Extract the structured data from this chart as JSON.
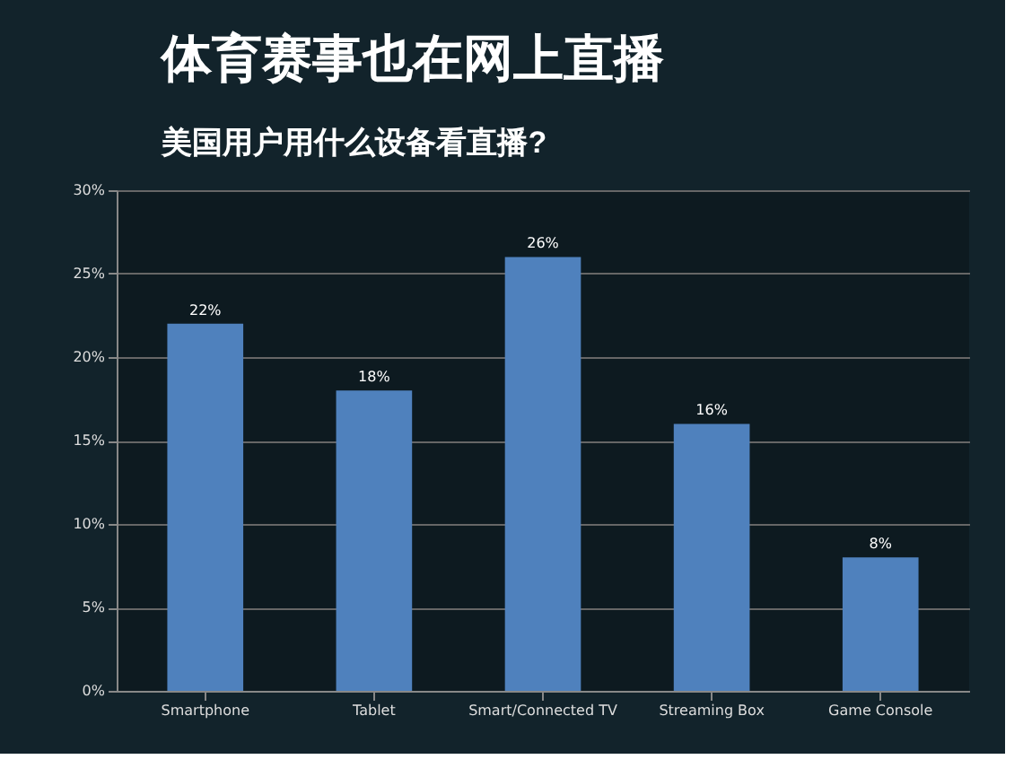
{
  "chart_data": {
    "type": "bar",
    "title": "体育赛事也在网上直播",
    "subtitle": "美国用户用什么设备看直播?",
    "categories": [
      "Smartphone",
      "Tablet",
      "Smart/Connected TV",
      "Streaming Box",
      "Game Console"
    ],
    "values": [
      22,
      18,
      26,
      16,
      8
    ],
    "value_labels": [
      "22%",
      "18%",
      "26%",
      "16%",
      "8%"
    ],
    "color": "#4f81bd",
    "ylim": [
      0,
      30
    ],
    "yticks": [
      {
        "value": 0,
        "label": "0%"
      },
      {
        "value": 5,
        "label": "5%"
      },
      {
        "value": 10,
        "label": "10%"
      },
      {
        "value": 15,
        "label": "15%"
      },
      {
        "value": 20,
        "label": "20%"
      },
      {
        "value": 25,
        "label": "25%"
      },
      {
        "value": 30,
        "label": "30%"
      }
    ],
    "grid": "y"
  }
}
